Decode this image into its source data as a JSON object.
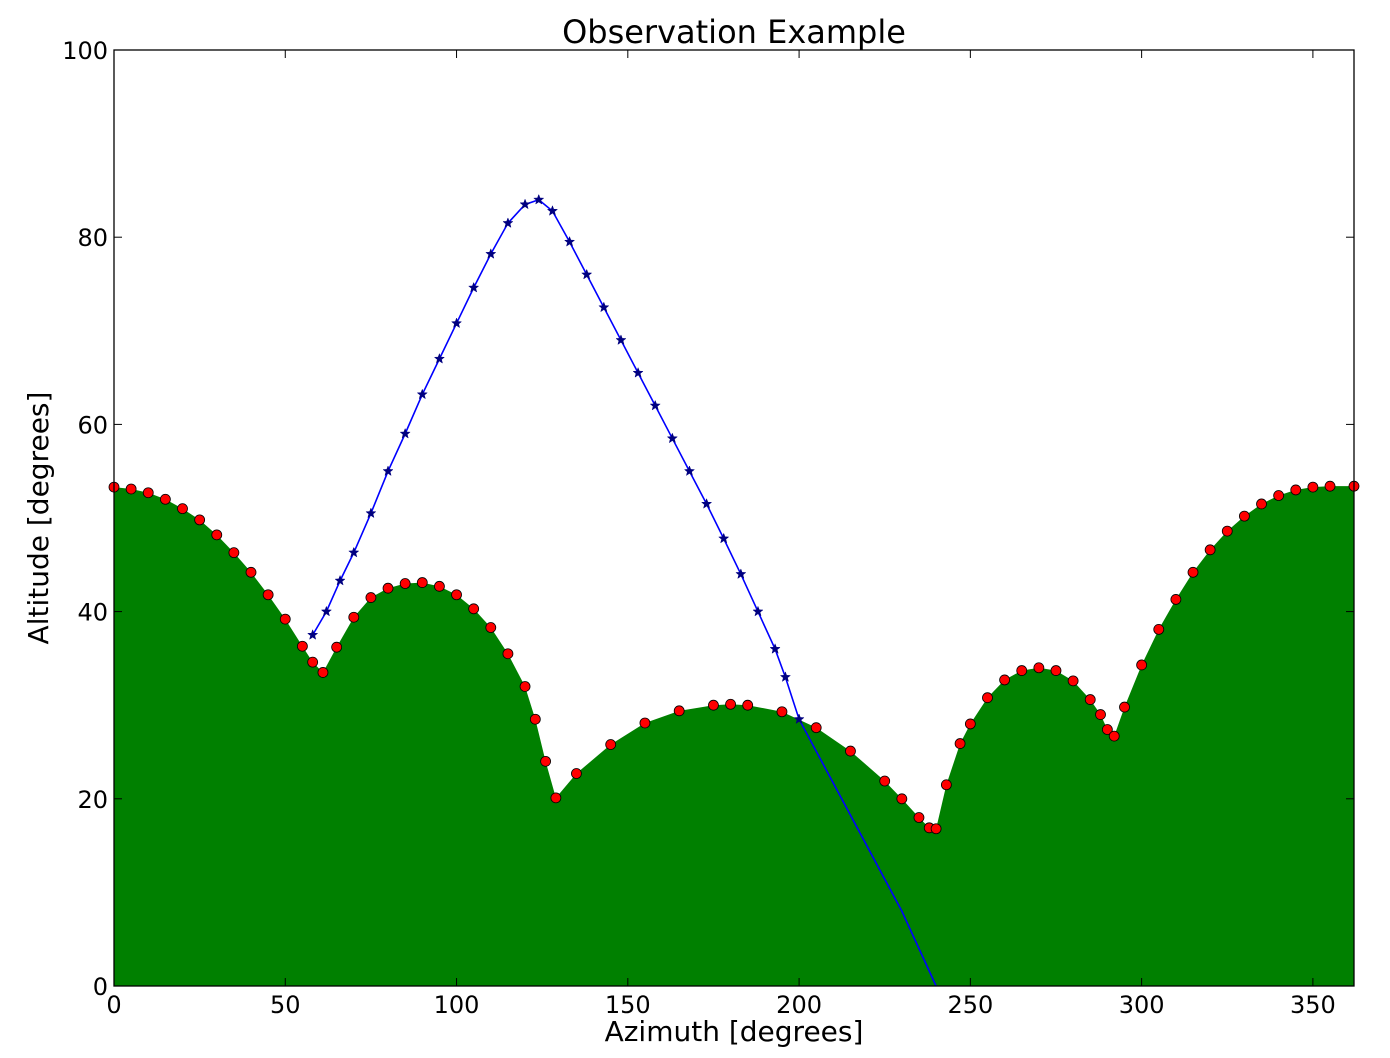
{
  "chart_data": {
    "type": "line",
    "title": "Observation Example",
    "xlabel": "Azimuth [degrees]",
    "ylabel": "Altitude [degrees]",
    "xlim": [
      0,
      362
    ],
    "ylim": [
      0,
      100
    ],
    "xticks": [
      0,
      50,
      100,
      150,
      200,
      250,
      300,
      350
    ],
    "yticks": [
      0,
      20,
      40,
      60,
      80,
      100
    ],
    "grid": false,
    "legend": "none",
    "horizon_color": "#008000",
    "horizon_marker_color": "#ff0000",
    "track_color": "#0000ff",
    "track_marker_color": "#000080",
    "series": [
      {
        "style": "filled-area-with-circle-markers",
        "x": [
          0,
          5,
          10,
          15,
          20,
          25,
          30,
          35,
          40,
          45,
          50,
          55,
          58,
          61,
          65,
          70,
          75,
          80,
          85,
          90,
          95,
          100,
          105,
          110,
          115,
          120,
          123,
          126,
          129,
          135,
          145,
          155,
          165,
          175,
          180,
          185,
          195,
          205,
          215,
          225,
          230,
          235,
          238,
          240,
          243,
          247,
          250,
          255,
          260,
          265,
          270,
          275,
          280,
          285,
          288,
          290,
          292,
          295,
          300,
          305,
          310,
          315,
          320,
          325,
          330,
          335,
          340,
          345,
          350,
          355,
          362
        ],
        "y": [
          53.3,
          53.1,
          52.7,
          52.0,
          51.0,
          49.8,
          48.2,
          46.3,
          44.2,
          41.8,
          39.2,
          36.3,
          34.6,
          33.5,
          36.2,
          39.4,
          41.5,
          42.5,
          43.0,
          43.1,
          42.7,
          41.8,
          40.3,
          38.3,
          35.5,
          32.0,
          28.5,
          24.0,
          20.1,
          22.7,
          25.8,
          28.1,
          29.4,
          30.0,
          30.1,
          30.0,
          29.3,
          27.6,
          25.1,
          21.9,
          20.0,
          18.0,
          16.9,
          16.8,
          21.5,
          25.9,
          28.0,
          30.8,
          32.7,
          33.7,
          34.0,
          33.7,
          32.6,
          30.6,
          29.0,
          27.4,
          26.7,
          29.8,
          34.3,
          38.1,
          41.3,
          44.2,
          46.6,
          48.6,
          50.2,
          51.5,
          52.4,
          53.0,
          53.3,
          53.4,
          53.4
        ]
      },
      {
        "style": "line-with-star-markers",
        "x": [
          58,
          62,
          66,
          70,
          75,
          80,
          85,
          90,
          95,
          100,
          105,
          110,
          115,
          120,
          124,
          128,
          133,
          138,
          143,
          148,
          153,
          158,
          163,
          168,
          173,
          178,
          183,
          188,
          193,
          196,
          200,
          230,
          240
        ],
        "y": [
          37.5,
          40.0,
          43.3,
          46.3,
          50.5,
          55.0,
          59.0,
          63.2,
          67.0,
          70.8,
          74.6,
          78.2,
          81.5,
          83.5,
          84.0,
          82.8,
          79.5,
          76.0,
          72.5,
          69.0,
          65.5,
          62.0,
          58.5,
          55.0,
          51.5,
          47.8,
          44.0,
          40.0,
          36.0,
          33.0,
          28.5,
          8.0,
          0.0
        ]
      }
    ]
  }
}
